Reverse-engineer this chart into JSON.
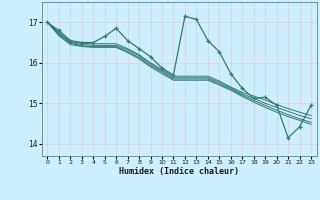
{
  "xlabel": "Humidex (Indice chaleur)",
  "background_color": "#cceeff",
  "grid_color": "#e8c8c8",
  "line_color": "#2e7d6e",
  "xlim": [
    -0.5,
    23.5
  ],
  "ylim": [
    13.7,
    17.5
  ],
  "yticks": [
    14,
    15,
    16,
    17
  ],
  "xticks": [
    0,
    1,
    2,
    3,
    4,
    5,
    6,
    7,
    8,
    9,
    10,
    11,
    12,
    13,
    14,
    15,
    16,
    17,
    18,
    19,
    20,
    21,
    22,
    23
  ],
  "series": [
    [
      17.0,
      16.8,
      16.55,
      16.5,
      16.5,
      16.65,
      16.85,
      16.55,
      16.35,
      16.15,
      15.87,
      15.7,
      17.15,
      17.07,
      16.55,
      16.27,
      15.73,
      15.37,
      15.12,
      15.15,
      14.95,
      14.15,
      14.42,
      14.95
    ],
    [
      17.0,
      16.75,
      16.52,
      16.48,
      16.47,
      16.47,
      16.47,
      16.35,
      16.2,
      16.0,
      15.83,
      15.67,
      15.67,
      15.67,
      15.67,
      15.55,
      15.4,
      15.27,
      15.18,
      15.08,
      14.97,
      14.87,
      14.78,
      14.7
    ],
    [
      17.0,
      16.73,
      16.5,
      16.45,
      16.43,
      16.43,
      16.43,
      16.32,
      16.17,
      15.97,
      15.8,
      15.63,
      15.63,
      15.63,
      15.63,
      15.52,
      15.38,
      15.23,
      15.12,
      15.0,
      14.9,
      14.8,
      14.7,
      14.62
    ],
    [
      17.0,
      16.7,
      16.48,
      16.42,
      16.4,
      16.4,
      16.4,
      16.28,
      16.13,
      15.93,
      15.77,
      15.6,
      15.6,
      15.6,
      15.6,
      15.48,
      15.35,
      15.2,
      15.07,
      14.95,
      14.83,
      14.72,
      14.62,
      14.53
    ],
    [
      17.0,
      16.67,
      16.45,
      16.4,
      16.38,
      16.38,
      16.38,
      16.25,
      16.1,
      15.9,
      15.73,
      15.57,
      15.57,
      15.57,
      15.57,
      15.45,
      15.32,
      15.17,
      15.03,
      14.9,
      14.78,
      14.67,
      14.58,
      14.48
    ]
  ]
}
